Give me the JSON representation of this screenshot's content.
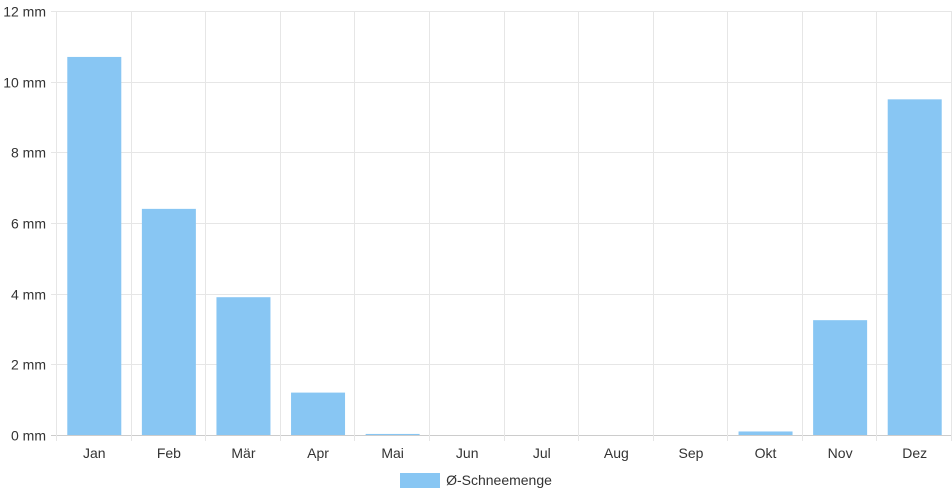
{
  "chart_data": {
    "type": "bar",
    "categories": [
      "Jan",
      "Feb",
      "Mär",
      "Apr",
      "Mai",
      "Jun",
      "Jul",
      "Aug",
      "Sep",
      "Okt",
      "Nov",
      "Dez"
    ],
    "series": [
      {
        "name": "Ø-Schneemenge",
        "values": [
          10.7,
          6.4,
          3.9,
          1.2,
          0.03,
          0,
          0,
          0,
          0,
          0.1,
          3.25,
          9.5
        ],
        "color": "#88c6f3"
      }
    ],
    "y_ticks": [
      "0 mm",
      "2 mm",
      "4 mm",
      "6 mm",
      "8 mm",
      "10 mm",
      "12 mm"
    ],
    "ylim": [
      0,
      12
    ],
    "grid": true,
    "legend_position": "bottom"
  }
}
